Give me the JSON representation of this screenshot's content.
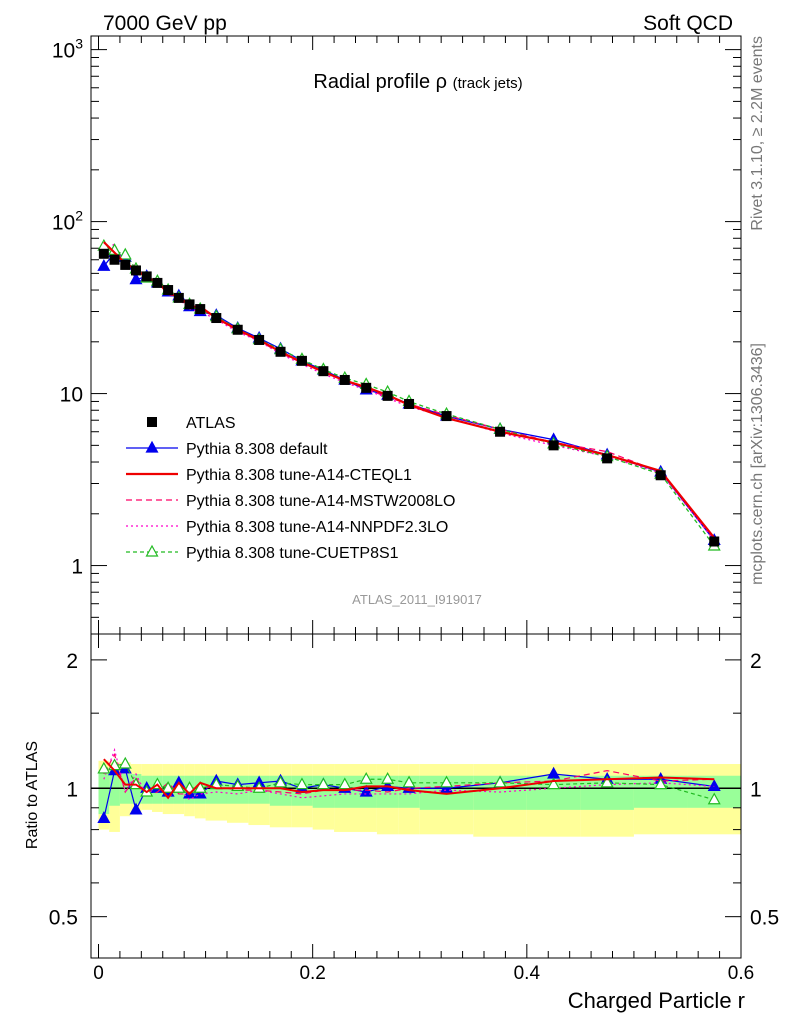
{
  "header": {
    "left": "7000 GeV pp",
    "right": "Soft QCD"
  },
  "side_text": {
    "rivet": "Rivet 3.1.10, ≥ 2.2M events",
    "mcplots": "mcplots.cern.ch [arXiv:1306.3436]"
  },
  "chart_data": [
    {
      "type": "line",
      "panel": "main",
      "title": "Radial profile ρ",
      "title_suffix": "(track jets)",
      "analysis_label": "ATLAS_2011_I919017",
      "yscale": "log",
      "xlim": [
        -0.007,
        0.6
      ],
      "ylim": [
        0.4,
        1200
      ],
      "y_tick_labels": [
        "1",
        "10",
        "10²",
        "10³"
      ],
      "x": [
        0.005,
        0.015,
        0.025,
        0.035,
        0.045,
        0.055,
        0.065,
        0.075,
        0.085,
        0.095,
        0.11,
        0.13,
        0.15,
        0.17,
        0.19,
        0.21,
        0.23,
        0.25,
        0.27,
        0.29,
        0.325,
        0.375,
        0.425,
        0.475,
        0.525,
        0.575
      ],
      "series": [
        {
          "name": "ATLAS",
          "color": "#000000",
          "marker": "square",
          "dash": "",
          "values": [
            65,
            60,
            56,
            52,
            48,
            44,
            40,
            36,
            33,
            31,
            27.5,
            23.5,
            20.5,
            17.5,
            15.5,
            13.5,
            12.0,
            10.8,
            9.7,
            8.7,
            7.4,
            6.0,
            5.0,
            4.2,
            3.35,
            1.38
          ]
        },
        {
          "name": "Pythia 8.308 default",
          "color": "#0000ee",
          "marker": "triangle",
          "dash": "",
          "values": [
            55,
            66,
            62,
            46,
            48,
            44,
            39,
            37,
            32,
            30,
            28.5,
            24,
            21,
            18.2,
            15.5,
            13.7,
            12.0,
            10.5,
            9.8,
            8.7,
            7.4,
            6.2,
            5.4,
            4.4,
            3.5,
            1.4
          ]
        },
        {
          "name": "Pythia 8.308 tune-A14-CTEQL1",
          "color": "#ee0000",
          "marker": "",
          "dash": "",
          "values": [
            76,
            66,
            57,
            53,
            47,
            45,
            38,
            37,
            32,
            32,
            27.5,
            23.5,
            20.5,
            17.5,
            15.2,
            13.4,
            11.9,
            10.9,
            9.8,
            8.6,
            7.2,
            6.0,
            5.2,
            4.4,
            3.55,
            1.45
          ]
        },
        {
          "name": "Pythia 8.308 tune-A14-MSTW2008LO",
          "color": "#ff0066",
          "marker": "",
          "dash": "6,4",
          "values": [
            70,
            72,
            55,
            55,
            46,
            43,
            41,
            35,
            32,
            31,
            27.8,
            23.2,
            20.3,
            17.2,
            15.1,
            13.3,
            11.9,
            10.7,
            9.5,
            8.7,
            7.5,
            6.2,
            5.2,
            4.6,
            3.5,
            1.45
          ]
        },
        {
          "name": "Pythia 8.308 tune-A14-NNPDF2.3LO",
          "color": "#ff00cc",
          "marker": "",
          "dash": "2,3",
          "values": [
            68,
            74,
            55,
            56,
            46,
            45,
            38,
            36,
            31,
            30,
            27,
            22.8,
            20.2,
            17.0,
            14.8,
            13.0,
            11.6,
            10.5,
            9.4,
            8.4,
            7.3,
            5.9,
            5.0,
            4.3,
            3.45,
            1.4
          ]
        },
        {
          "name": "Pythia 8.308 tune-CUETP8S1",
          "color": "#22bb22",
          "marker": "open-triangle",
          "dash": "4,3",
          "values": [
            72,
            68,
            64,
            53,
            47,
            45,
            40,
            36,
            33,
            31,
            28,
            23.8,
            20.6,
            18.0,
            15.8,
            13.8,
            12.3,
            11.3,
            10.2,
            9.0,
            7.6,
            6.2,
            5.1,
            4.3,
            3.4,
            1.3
          ]
        }
      ]
    },
    {
      "type": "line",
      "panel": "ratio",
      "ylabel": "Ratio to ATLAS",
      "xlabel": "Charged Particle r",
      "xlim": [
        -0.007,
        0.6
      ],
      "ylim": [
        0.4,
        2.3
      ],
      "y_tick_labels": [
        "0.5",
        "1",
        "2"
      ],
      "x_tick_labels": [
        "0",
        "0.2",
        "0.4",
        "0.6"
      ],
      "band_edges": [
        0,
        0.01,
        0.02,
        0.03,
        0.04,
        0.05,
        0.06,
        0.07,
        0.08,
        0.09,
        0.1,
        0.12,
        0.14,
        0.16,
        0.18,
        0.2,
        0.22,
        0.24,
        0.26,
        0.28,
        0.3,
        0.35,
        0.4,
        0.45,
        0.5,
        0.55,
        0.6
      ],
      "band_total": [
        [
          0.8,
          1.16
        ],
        [
          0.79,
          1.15
        ],
        [
          0.86,
          1.15
        ],
        [
          0.88,
          1.14
        ],
        [
          0.89,
          1.14
        ],
        [
          0.88,
          1.14
        ],
        [
          0.87,
          1.14
        ],
        [
          0.87,
          1.14
        ],
        [
          0.86,
          1.14
        ],
        [
          0.85,
          1.14
        ],
        [
          0.84,
          1.14
        ],
        [
          0.83,
          1.14
        ],
        [
          0.82,
          1.14
        ],
        [
          0.81,
          1.14
        ],
        [
          0.81,
          1.14
        ],
        [
          0.8,
          1.14
        ],
        [
          0.79,
          1.14
        ],
        [
          0.79,
          1.14
        ],
        [
          0.78,
          1.14
        ],
        [
          0.78,
          1.14
        ],
        [
          0.78,
          1.14
        ],
        [
          0.77,
          1.14
        ],
        [
          0.77,
          1.14
        ],
        [
          0.77,
          1.14
        ],
        [
          0.78,
          1.14
        ],
        [
          0.78,
          1.14
        ]
      ],
      "band_stat": [
        [
          0.87,
          1.09
        ],
        [
          0.91,
          1.08
        ],
        [
          0.92,
          1.08
        ],
        [
          0.92,
          1.08
        ],
        [
          0.92,
          1.07
        ],
        [
          0.92,
          1.07
        ],
        [
          0.92,
          1.07
        ],
        [
          0.92,
          1.07
        ],
        [
          0.92,
          1.07
        ],
        [
          0.92,
          1.07
        ],
        [
          0.92,
          1.07
        ],
        [
          0.92,
          1.07
        ],
        [
          0.92,
          1.07
        ],
        [
          0.91,
          1.07
        ],
        [
          0.91,
          1.07
        ],
        [
          0.9,
          1.07
        ],
        [
          0.9,
          1.07
        ],
        [
          0.9,
          1.07
        ],
        [
          0.9,
          1.07
        ],
        [
          0.9,
          1.07
        ],
        [
          0.89,
          1.07
        ],
        [
          0.89,
          1.07
        ],
        [
          0.89,
          1.07
        ],
        [
          0.89,
          1.07
        ],
        [
          0.9,
          1.07
        ],
        [
          0.9,
          1.07
        ]
      ],
      "x": [
        0.005,
        0.015,
        0.025,
        0.035,
        0.045,
        0.055,
        0.065,
        0.075,
        0.085,
        0.095,
        0.11,
        0.13,
        0.15,
        0.17,
        0.19,
        0.21,
        0.23,
        0.25,
        0.27,
        0.29,
        0.325,
        0.375,
        0.425,
        0.475,
        0.525,
        0.575
      ],
      "series": [
        {
          "name": "Pythia 8.308 default",
          "color": "#0000ee",
          "marker": "triangle",
          "dash": "",
          "values": [
            0.85,
            1.1,
            1.11,
            0.89,
            1.0,
            1.0,
            0.98,
            1.03,
            0.97,
            0.97,
            1.04,
            1.02,
            1.03,
            1.04,
            1.0,
            1.02,
            1.0,
            0.98,
            1.01,
            1.0,
            1.0,
            1.03,
            1.08,
            1.05,
            1.05,
            1.01
          ]
        },
        {
          "name": "Pythia 8.308 tune-A14-CTEQL1",
          "color": "#ee0000",
          "marker": "",
          "dash": "",
          "values": [
            1.17,
            1.1,
            1.02,
            1.02,
            0.98,
            1.02,
            0.95,
            1.03,
            0.97,
            1.03,
            1.0,
            1.0,
            1.0,
            1.0,
            0.98,
            0.99,
            0.99,
            1.01,
            1.01,
            0.99,
            0.97,
            1.0,
            1.04,
            1.05,
            1.06,
            1.05
          ]
        },
        {
          "name": "Pythia 8.308 tune-A14-MSTW2008LO",
          "color": "#ff0066",
          "marker": "",
          "dash": "6,4",
          "values": [
            1.08,
            1.2,
            0.98,
            1.06,
            0.96,
            0.98,
            1.03,
            0.97,
            0.97,
            1.0,
            1.01,
            0.99,
            0.99,
            0.98,
            0.97,
            0.99,
            0.99,
            0.99,
            0.98,
            1.0,
            1.01,
            1.03,
            1.04,
            1.1,
            1.04,
            1.05
          ]
        },
        {
          "name": "Pythia 8.308 tune-A14-NNPDF2.3LO",
          "color": "#ff00cc",
          "marker": "",
          "dash": "2,3",
          "values": [
            1.05,
            1.23,
            0.98,
            1.08,
            0.96,
            1.02,
            0.95,
            1.0,
            0.94,
            0.97,
            0.98,
            0.97,
            0.99,
            0.97,
            0.95,
            0.96,
            0.97,
            0.97,
            0.97,
            0.97,
            0.99,
            0.98,
            1.0,
            1.02,
            1.03,
            1.01
          ]
        },
        {
          "name": "Pythia 8.308 tune-CUETP8S1",
          "color": "#22bb22",
          "marker": "open-triangle",
          "dash": "4,3",
          "values": [
            1.11,
            1.13,
            1.14,
            1.02,
            0.98,
            1.02,
            1.0,
            1.0,
            1.0,
            1.0,
            1.02,
            1.01,
            1.0,
            1.03,
            1.02,
            1.02,
            1.02,
            1.05,
            1.05,
            1.03,
            1.03,
            1.03,
            1.02,
            1.03,
            1.02,
            0.94
          ]
        }
      ]
    }
  ]
}
